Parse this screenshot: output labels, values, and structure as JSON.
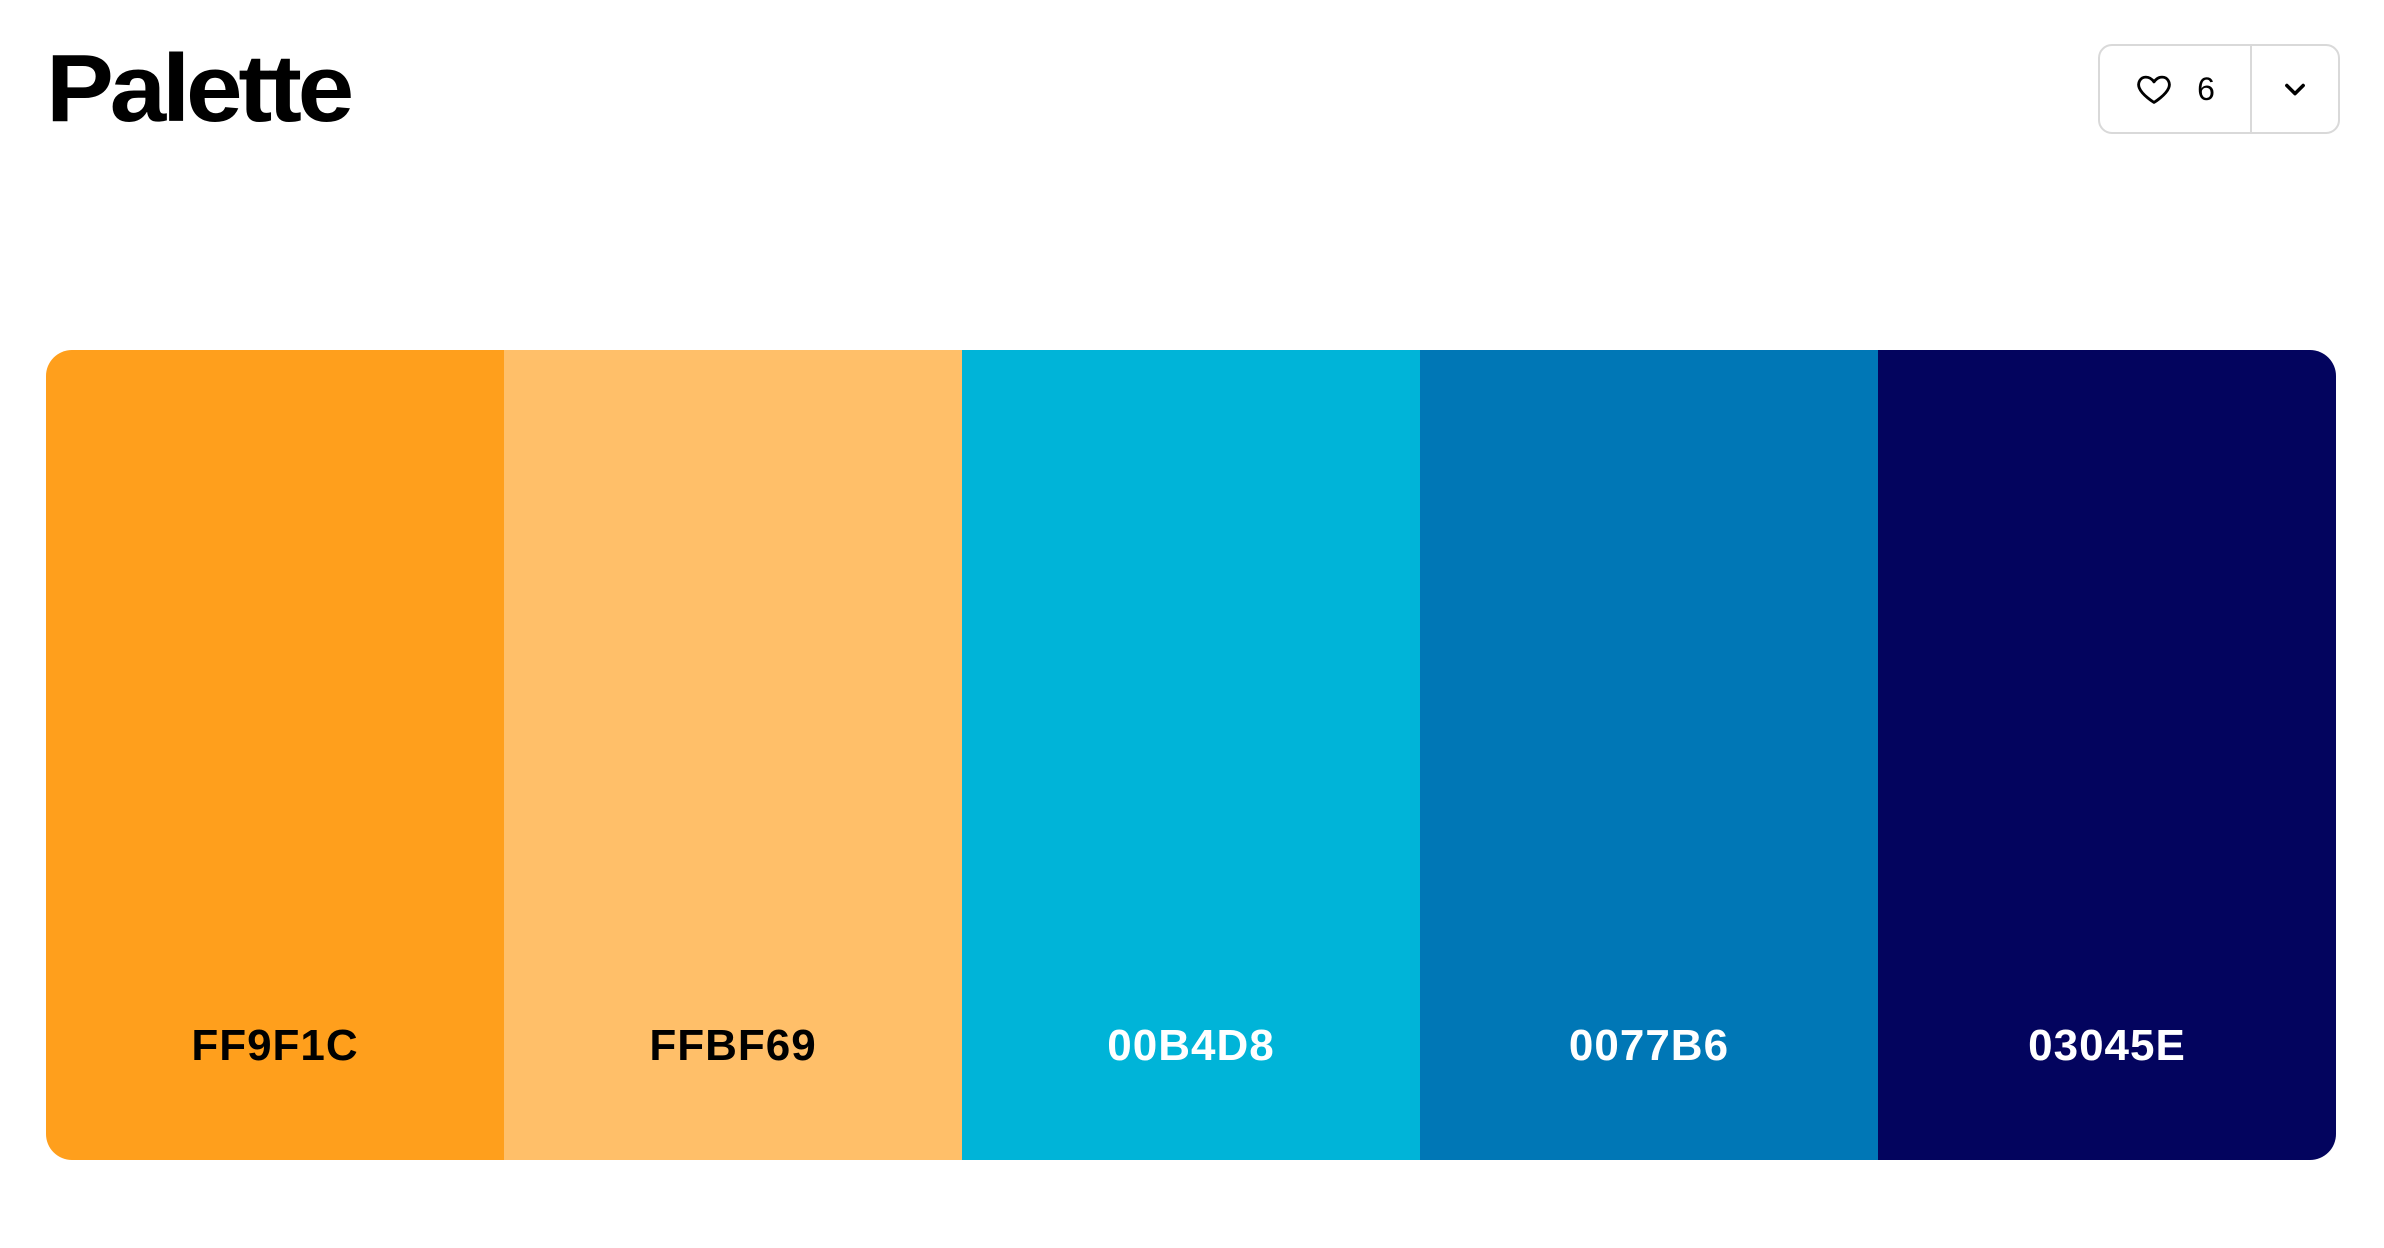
{
  "header": {
    "title": "Palette"
  },
  "actions": {
    "like_count": "6",
    "like_icon": "heart-icon",
    "more_icon": "chevron-down-icon"
  },
  "palette": {
    "swatches": [
      {
        "hex": "FF9F1C",
        "color": "#FF9F1C",
        "text_color": "#000000"
      },
      {
        "hex": "FFBF69",
        "color": "#FFBF69",
        "text_color": "#000000"
      },
      {
        "hex": "00B4D8",
        "color": "#00B4D8",
        "text_color": "#FFFFFF"
      },
      {
        "hex": "0077B6",
        "color": "#0077B6",
        "text_color": "#FFFFFF"
      },
      {
        "hex": "03045E",
        "color": "#03045E",
        "text_color": "#FFFFFF"
      }
    ]
  }
}
